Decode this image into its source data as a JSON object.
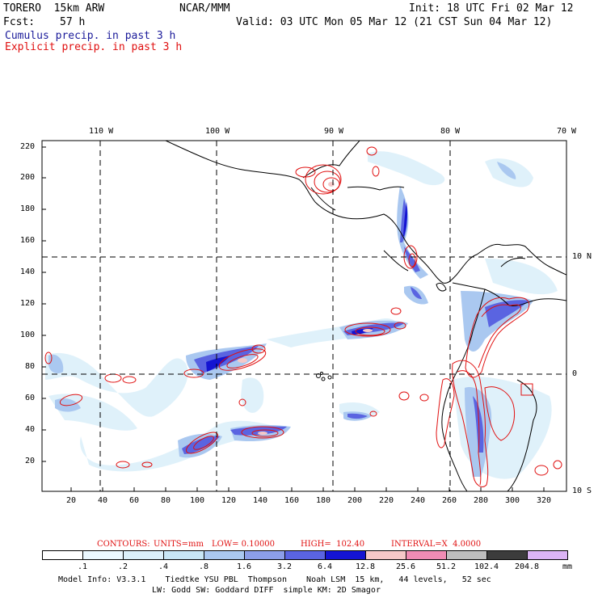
{
  "header": {
    "model": "TORERO  15km ARW",
    "org": "NCAR/MMM",
    "init": "Init: 18 UTC Fri 02 Mar 12",
    "fcst_label": "Fcst:",
    "fcst_hours": "57 h",
    "valid": "Valid: 03 UTC Mon 05 Mar 12 (21 CST Sun 04 Mar 12)",
    "field1": "Cumulus precip. in past 3 h",
    "field2": "Explicit precip. in past 3 h"
  },
  "axes": {
    "top_lon": [
      "110 W",
      "100 W",
      "90 W",
      "80 W",
      "70 W"
    ],
    "right_lat": [
      "10 N",
      "0",
      "10 S"
    ],
    "left_y": [
      "220",
      "200",
      "180",
      "160",
      "140",
      "120",
      "100",
      "80",
      "60",
      "40",
      "20"
    ],
    "bottom_x": [
      "20",
      "40",
      "60",
      "80",
      "100",
      "120",
      "140",
      "160",
      "180",
      "200",
      "220",
      "240",
      "260",
      "280",
      "300",
      "320"
    ]
  },
  "contours": {
    "label": "CONTOURS:",
    "units": "UNITS=mm",
    "low": "LOW= 0.10000",
    "high": "HIGH=  102.40",
    "interval": "INTERVAL=X  4.0000"
  },
  "legend": {
    "labels": [
      ".1",
      ".2",
      ".4",
      ".8",
      "1.6",
      "3.2",
      "6.4",
      "12.8",
      "25.6",
      "51.2",
      "102.4",
      "204.8"
    ],
    "colors": [
      "#ffffff",
      "#ebf8ff",
      "#dcf0fa",
      "#c8e6f5",
      "#aac8f0",
      "#8c9ee8",
      "#5a64e1",
      "#1414d2",
      "#f5c8c8",
      "#f08cb4",
      "#bebebe",
      "#3c3c3c",
      "#dcb4f5"
    ],
    "unit": "mm"
  },
  "footer": {
    "line1": "Model Info: V3.3.1    Tiedtke YSU PBL  Thompson    Noah LSM  15 km,   44 levels,   52 sec",
    "line2": "LW: Godd SW: Goddard DIFF  simple KM: 2D Smagor"
  }
}
